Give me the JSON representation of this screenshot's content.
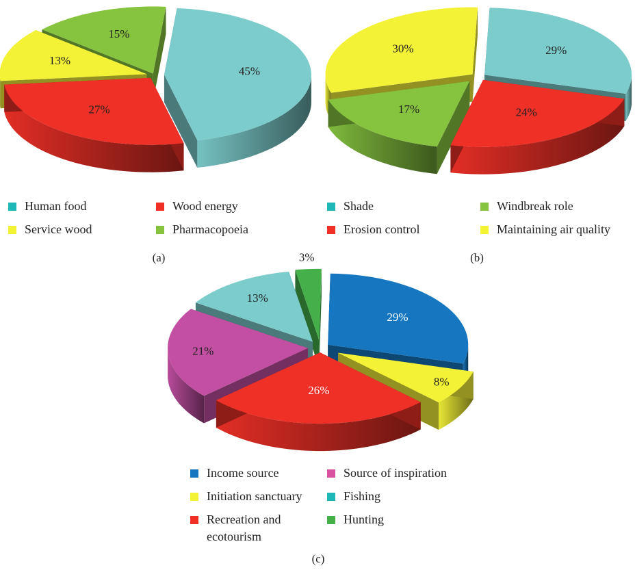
{
  "chart_data": [
    {
      "type": "pie",
      "caption": "(a)",
      "categories": [
        "Human food",
        "Wood energy",
        "Service wood",
        "Pharmacopoeia"
      ],
      "values": [
        45,
        27,
        13,
        15
      ],
      "slice_labels": [
        "45%",
        "27%",
        "13%",
        "15%"
      ],
      "colors": [
        "#7ccccc",
        "#ee3027",
        "#f3f237",
        "#86c440"
      ],
      "legend_placement": "bottom"
    },
    {
      "type": "pie",
      "caption": "(b)",
      "categories": [
        "Shade",
        "Erosion control",
        "Windbreak role",
        "Maintaining air quality"
      ],
      "values": [
        29,
        24,
        17,
        30
      ],
      "slice_labels": [
        "29%",
        "24%",
        "17%",
        "30%"
      ],
      "colors": [
        "#7ccccc",
        "#ee3027",
        "#86c440",
        "#f3f237"
      ],
      "legend_placement": "bottom"
    },
    {
      "type": "pie",
      "caption": "(c)",
      "categories": [
        "Income source",
        "Initiation sanctuary",
        "Recreation and ecotourism",
        "Source of inspiration",
        "Fishing",
        "Hunting"
      ],
      "values": [
        29,
        8,
        26,
        21,
        13,
        3
      ],
      "slice_labels": [
        "29%",
        "8%",
        "26%",
        "21%",
        "13%",
        "3%"
      ],
      "colors": [
        "#1677c0",
        "#f3f237",
        "#ee3027",
        "#c24fa2",
        "#7ccccc",
        "#45b04a"
      ],
      "legend_placement": "bottom"
    }
  ],
  "legends": {
    "a": [
      {
        "label": "Human food",
        "color": "#1fb8b8"
      },
      {
        "label": "Wood energy",
        "color": "#ee3027"
      },
      {
        "label": "Service wood",
        "color": "#f3f237"
      },
      {
        "label": "Pharmacopoeia",
        "color": "#86c440"
      }
    ],
    "b": [
      {
        "label": "Shade",
        "color": "#1fb8b8"
      },
      {
        "label": "Windbreak role",
        "color": "#86c440"
      },
      {
        "label": "Erosion control",
        "color": "#ee3027"
      },
      {
        "label": "Maintaining air quality",
        "color": "#f3f237"
      }
    ],
    "c": [
      {
        "label": "Income source",
        "color": "#1677c0"
      },
      {
        "label": "Source of inspiration",
        "color": "#d9529f"
      },
      {
        "label": "Initiation sanctuary",
        "color": "#f3f237"
      },
      {
        "label": "Fishing",
        "color": "#1fb8b8"
      },
      {
        "label": "Recreation and",
        "label2": "ecotourism",
        "color": "#ee3027"
      },
      {
        "label": "Hunting",
        "color": "#45b04a"
      }
    ]
  }
}
